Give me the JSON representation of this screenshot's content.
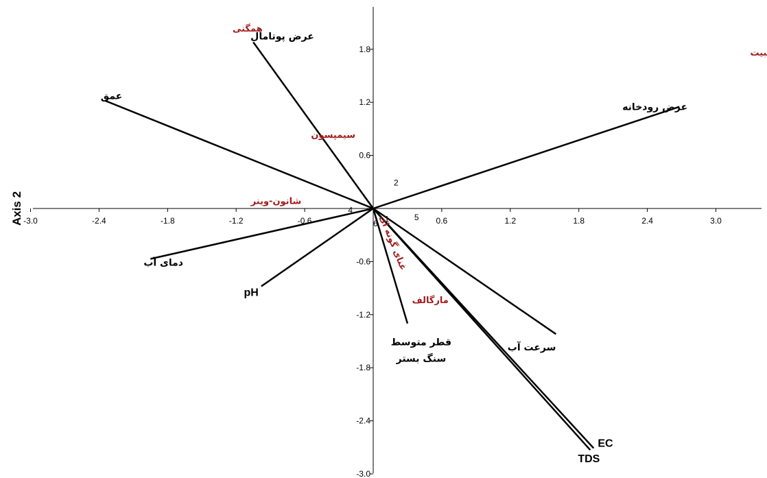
{
  "chart_data": {
    "type": "biplot",
    "ylabel": "Axis 2",
    "xlim": [
      -3.0,
      3.3
    ],
    "ylim": [
      -3.0,
      2.3
    ],
    "x_ticks": [
      "-3.0",
      "-2.4",
      "-1.8",
      "-1.2",
      "-0.6",
      "0.6",
      "1.2",
      "1.8",
      "2.4",
      "3.0"
    ],
    "y_ticks": [
      "1.8",
      "1.2",
      "0.6",
      "-0.6",
      "-1.2",
      "-1.8",
      "-2.4",
      "-3.0"
    ],
    "vectors": [
      {
        "label": "عرض پوتامال",
        "x": -1.05,
        "y": 1.88
      },
      {
        "label": "عمق",
        "x": -2.35,
        "y": 1.22
      },
      {
        "label": "عرض رودخانه",
        "x": 2.68,
        "y": 1.15
      },
      {
        "label": "دمای آب",
        "x": -1.95,
        "y": -0.57
      },
      {
        "label": "pH",
        "x": -0.98,
        "y": -0.88
      },
      {
        "label": "قطر متوسط سنگ بستر",
        "x": 0.3,
        "y": -1.3
      },
      {
        "label": "سرعت آب",
        "x": 1.6,
        "y": -1.42
      },
      {
        "label": "EC",
        "x": 1.93,
        "y": -2.71
      },
      {
        "label": "TDS",
        "x": 1.9,
        "y": -2.73
      }
    ],
    "indices": [
      {
        "label": "همگنی",
        "x": -1.1,
        "y": 2.0
      },
      {
        "label": "غالبیت",
        "x": 3.3,
        "y": 1.73
      },
      {
        "label": "سیمپسون",
        "x": -0.35,
        "y": 0.8
      },
      {
        "label": "شانون-وینر",
        "x": -0.85,
        "y": 0.05
      },
      {
        "label": "غنای گونه ای",
        "x": 0.15,
        "y": -0.4
      },
      {
        "label": "مارگالف",
        "x": 0.5,
        "y": -1.07
      }
    ],
    "sites": [
      {
        "label": "2",
        "x": 0.2,
        "y": 0.26
      },
      {
        "label": "5",
        "x": 0.38,
        "y": -0.13
      },
      {
        "label": "6",
        "x": 0.02,
        "y": -0.2
      },
      {
        "label": "4",
        "x": -0.2,
        "y": -0.05
      },
      {
        "label": "1",
        "x": 0.12,
        "y": -0.15
      }
    ],
    "colors": {
      "index_labels": "#a11d1d",
      "vectors": "#000000"
    }
  }
}
